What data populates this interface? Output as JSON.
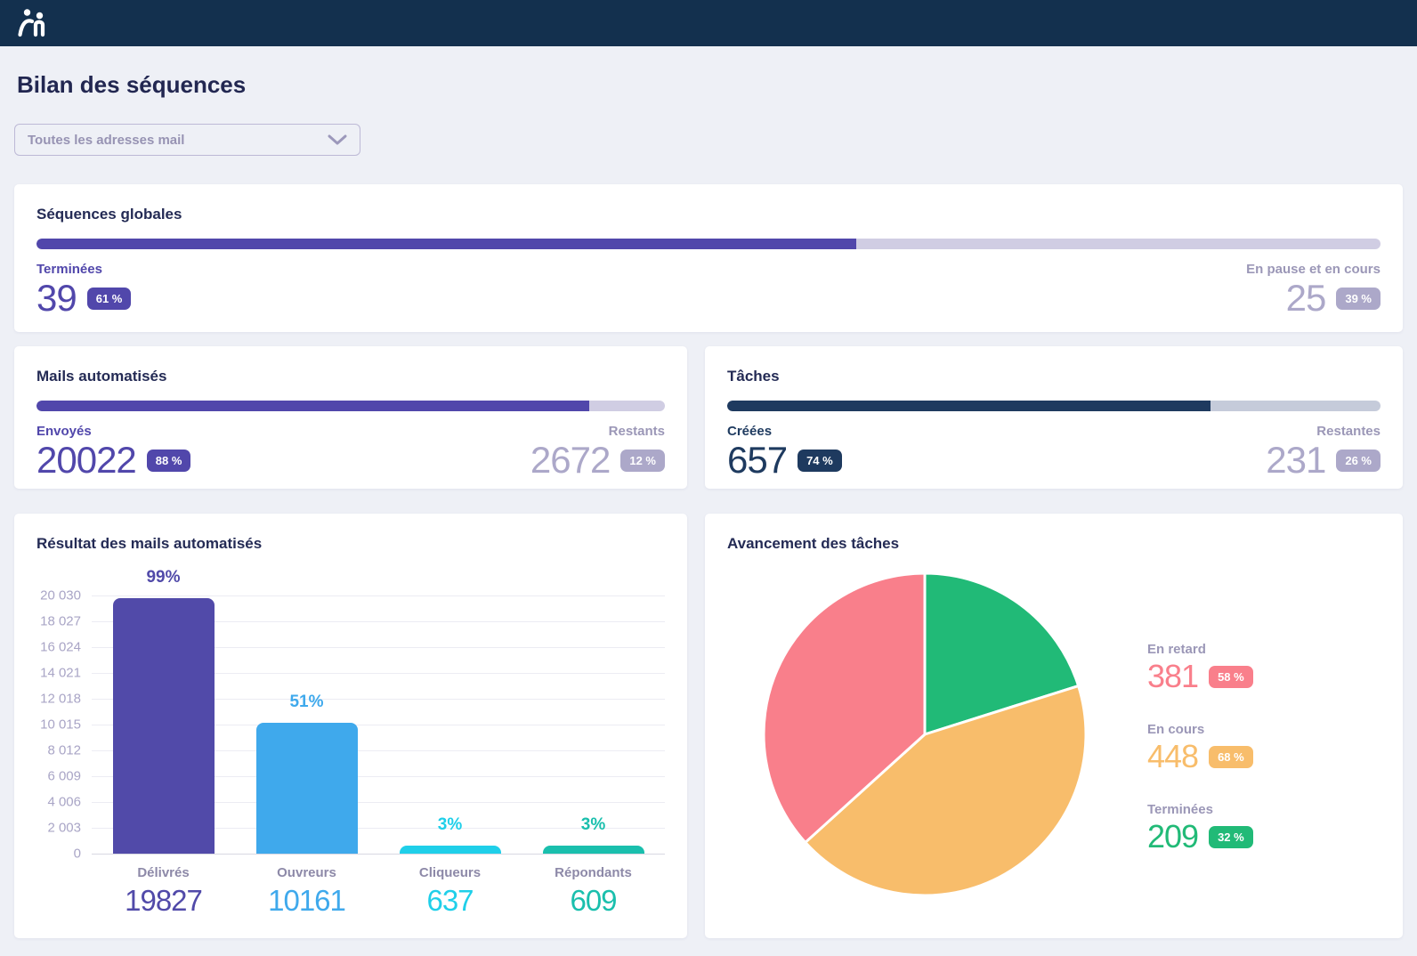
{
  "page": {
    "title": "Bilan des séquences"
  },
  "filter_select": {
    "value": "Toutes les adresses mail"
  },
  "colors": {
    "header_bg": "#13304E",
    "indigo": "#5147AB",
    "indigo_track": "#D0CDE3",
    "navy": "#1E3A5F",
    "navy_track": "#C5CBDA",
    "muted_label": "#9B97B7",
    "muted_value": "#ACA8C9",
    "page_bg": "#EEF0F6"
  },
  "stat_cards": {
    "sequences": {
      "title": "Séquences globales",
      "progress_percent": 61,
      "left": {
        "label": "Terminées",
        "value": "39",
        "badge": "61 %"
      },
      "right": {
        "label": "En pause et en cours",
        "value": "25",
        "badge": "39 %"
      }
    },
    "mails": {
      "title": "Mails automatisés",
      "progress_percent": 88,
      "left": {
        "label": "Envoyés",
        "value": "20022",
        "badge": "88 %"
      },
      "right": {
        "label": "Restants",
        "value": "2672",
        "badge": "12 %"
      }
    },
    "tasks": {
      "title": "Tâches",
      "progress_percent": 74,
      "left": {
        "label": "Créées",
        "value": "657",
        "badge": "74 %"
      },
      "right": {
        "label": "Restantes",
        "value": "231",
        "badge": "26 %"
      }
    }
  },
  "chart_data": [
    {
      "type": "bar",
      "title": "Résultat des mails automatisés",
      "categories": [
        "Délivrés",
        "Ouvreurs",
        "Cliqueurs",
        "Répondants"
      ],
      "values": [
        19827,
        10161,
        637,
        609
      ],
      "percent_labels": [
        "99%",
        "51%",
        "3%",
        "3%"
      ],
      "bar_colors": [
        "#514AA9",
        "#3FA9EC",
        "#1FCFE9",
        "#1ABFAD"
      ],
      "y_ticks": [
        "20 030",
        "18 027",
        "16 024",
        "14 021",
        "12 018",
        "10 015",
        "8 012",
        "6 009",
        "4 006",
        "2 003",
        "0"
      ],
      "ylim": [
        0,
        20030
      ],
      "grid": true,
      "xlabel": "",
      "ylabel": ""
    },
    {
      "type": "pie",
      "title": "Avancement des tâches",
      "slices": [
        {
          "label": "En retard",
          "value": 381,
          "badge": "58 %",
          "color": "#F97F8B"
        },
        {
          "label": "En cours",
          "value": 448,
          "badge": "68 %",
          "color": "#F8BD6B"
        },
        {
          "label": "Terminées",
          "value": 209,
          "badge": "32 %",
          "color": "#21BA77"
        }
      ],
      "draw_order": [
        2,
        1,
        0
      ],
      "start": "top",
      "direction": "clockwise",
      "legend_position": "right"
    }
  ]
}
